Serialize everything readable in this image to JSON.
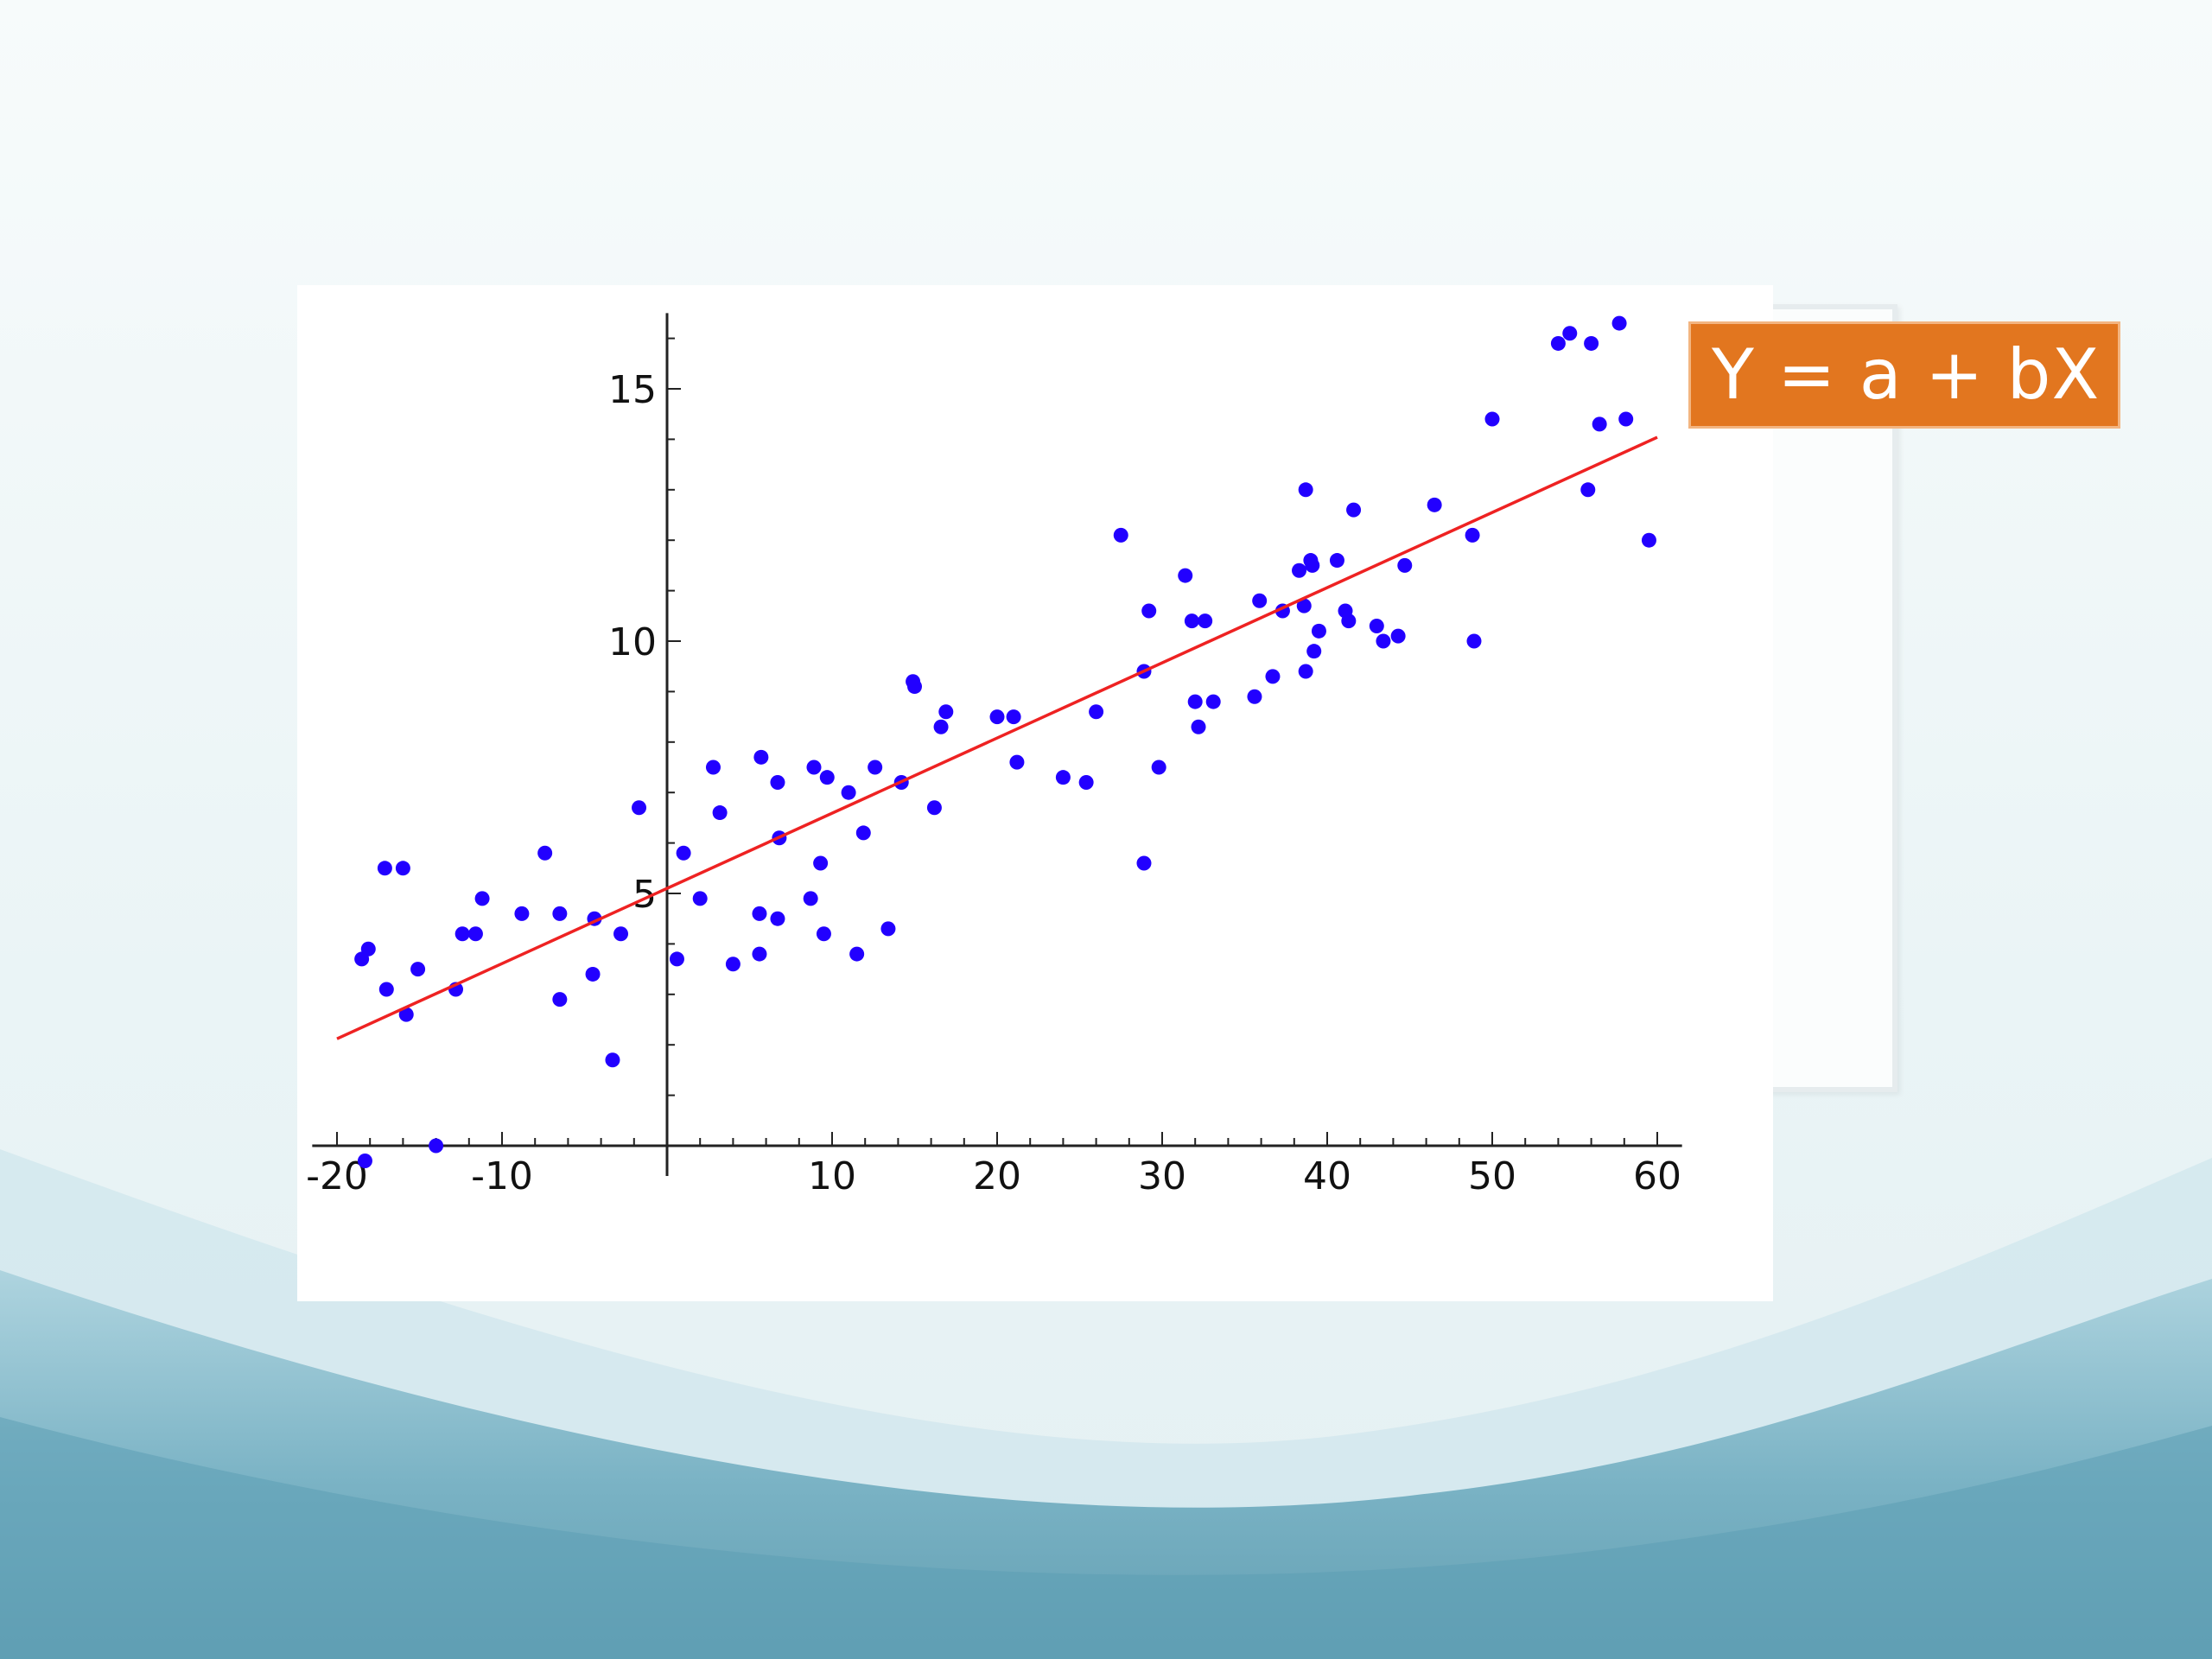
{
  "slide": {
    "equation_label": "Y = a + bX",
    "colors": {
      "equation_fill": "#e2761f",
      "point_color": "#2200ff",
      "fit_line_color": "#ee2222",
      "background_top": "#f7fbfb",
      "background_bottom": "#5fa2b8"
    }
  },
  "chart_data": {
    "type": "scatter",
    "title": "",
    "xlabel": "",
    "ylabel": "",
    "xlim": [
      -20,
      60
    ],
    "ylim": [
      0,
      16.5
    ],
    "x_ticks": [
      "-20",
      "-10",
      "10",
      "20",
      "30",
      "40",
      "50",
      "60"
    ],
    "y_ticks": [
      "5",
      "10",
      "15"
    ],
    "grid": false,
    "series": [
      {
        "points": [
          [
            -18.3,
            -0.3
          ],
          [
            -18.5,
            3.7
          ],
          [
            -18.1,
            3.9
          ],
          [
            -17.0,
            3.1
          ],
          [
            -17.1,
            5.5
          ],
          [
            -16.0,
            5.5
          ],
          [
            -15.8,
            2.6
          ],
          [
            -15.1,
            3.5
          ],
          [
            -12.8,
            3.1
          ],
          [
            -12.4,
            4.2
          ],
          [
            -14.0,
            0.0
          ],
          [
            -11.6,
            4.2
          ],
          [
            -11.2,
            4.9
          ],
          [
            -8.8,
            4.6
          ],
          [
            -7.4,
            5.8
          ],
          [
            -6.5,
            4.6
          ],
          [
            -6.5,
            2.9
          ],
          [
            -4.5,
            3.4
          ],
          [
            -4.4,
            4.5
          ],
          [
            -3.3,
            1.7
          ],
          [
            -2.8,
            4.2
          ],
          [
            -1.7,
            6.7
          ],
          [
            0.6,
            3.7
          ],
          [
            1.0,
            5.8
          ],
          [
            2.0,
            4.9
          ],
          [
            2.8,
            7.5
          ],
          [
            3.2,
            6.6
          ],
          [
            4.0,
            3.6
          ],
          [
            5.6,
            3.8
          ],
          [
            5.6,
            4.6
          ],
          [
            5.7,
            7.7
          ],
          [
            6.7,
            7.2
          ],
          [
            6.7,
            4.5
          ],
          [
            6.8,
            6.1
          ],
          [
            8.7,
            4.9
          ],
          [
            8.9,
            7.5
          ],
          [
            9.3,
            5.6
          ],
          [
            9.5,
            4.2
          ],
          [
            9.7,
            7.3
          ],
          [
            11.0,
            7.0
          ],
          [
            11.5,
            3.8
          ],
          [
            11.9,
            6.2
          ],
          [
            12.6,
            7.5
          ],
          [
            13.4,
            4.3
          ],
          [
            14.2,
            7.2
          ],
          [
            14.9,
            9.2
          ],
          [
            15.0,
            9.1
          ],
          [
            16.2,
            6.7
          ],
          [
            16.6,
            8.3
          ],
          [
            16.9,
            8.6
          ],
          [
            20.0,
            8.5
          ],
          [
            21.0,
            8.5
          ],
          [
            21.2,
            7.6
          ],
          [
            24.0,
            7.3
          ],
          [
            25.4,
            7.2
          ],
          [
            26.0,
            8.6
          ],
          [
            27.5,
            12.1
          ],
          [
            28.9,
            9.4
          ],
          [
            28.9,
            5.6
          ],
          [
            29.2,
            10.6
          ],
          [
            29.8,
            7.5
          ],
          [
            31.4,
            11.3
          ],
          [
            31.8,
            10.4
          ],
          [
            32.0,
            8.8
          ],
          [
            32.2,
            8.3
          ],
          [
            32.6,
            10.4
          ],
          [
            33.1,
            8.8
          ],
          [
            35.6,
            8.9
          ],
          [
            35.9,
            10.8
          ],
          [
            36.7,
            9.3
          ],
          [
            37.3,
            10.6
          ],
          [
            38.3,
            11.4
          ],
          [
            38.6,
            10.7
          ],
          [
            38.7,
            13.0
          ],
          [
            38.7,
            9.4
          ],
          [
            39.0,
            11.6
          ],
          [
            39.1,
            11.5
          ],
          [
            39.2,
            9.8
          ],
          [
            39.5,
            10.2
          ],
          [
            40.6,
            11.6
          ],
          [
            41.1,
            10.6
          ],
          [
            41.3,
            10.4
          ],
          [
            41.6,
            12.6
          ],
          [
            43.0,
            10.3
          ],
          [
            43.4,
            10.0
          ],
          [
            44.3,
            10.1
          ],
          [
            44.7,
            11.5
          ],
          [
            46.5,
            12.7
          ],
          [
            48.8,
            12.1
          ],
          [
            48.9,
            10.0
          ],
          [
            50.0,
            14.4
          ],
          [
            54.0,
            15.9
          ],
          [
            54.7,
            16.1
          ],
          [
            55.8,
            13.0
          ],
          [
            56.0,
            15.9
          ],
          [
            56.5,
            14.3
          ],
          [
            57.7,
            16.3
          ],
          [
            58.1,
            14.4
          ],
          [
            59.5,
            12.0
          ]
        ]
      }
    ],
    "fit_line": {
      "intercept": 5.1,
      "slope": 0.149,
      "x_range": [
        -20,
        60
      ]
    }
  }
}
